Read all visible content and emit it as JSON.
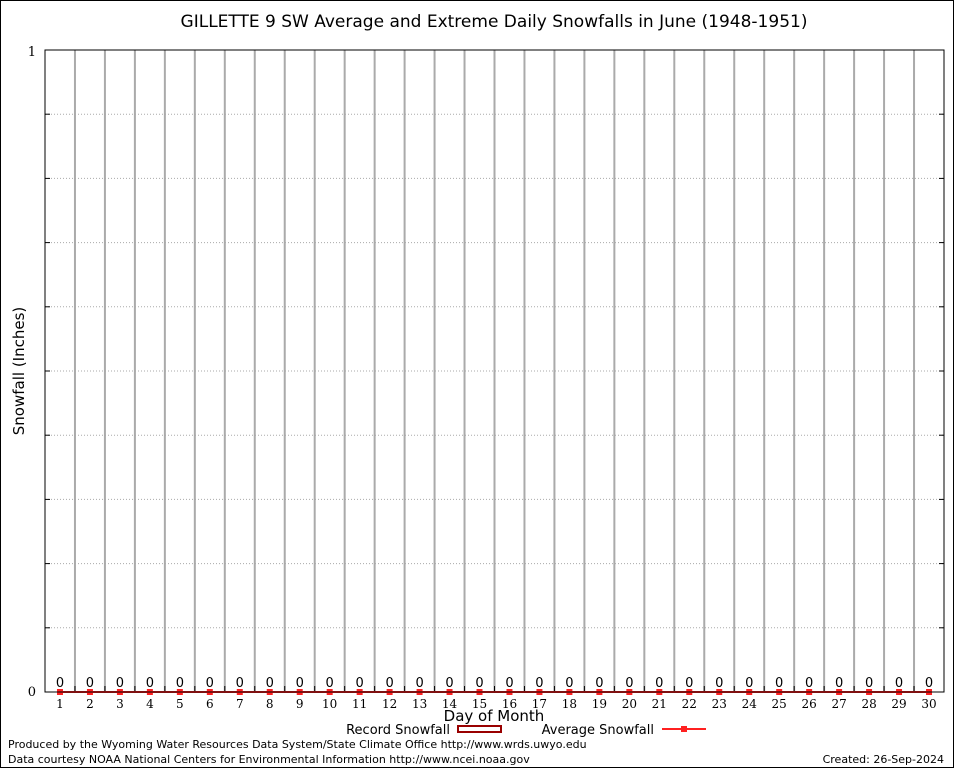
{
  "chart_data": {
    "type": "bar",
    "title": "GILLETTE 9 SW Average and Extreme Daily Snowfalls in June (1948-1951)",
    "xlabel": "Day of Month",
    "ylabel": "Snowfall (Inches)",
    "ylim": [
      0,
      1
    ],
    "yticks": [
      "0",
      "1"
    ],
    "grid": true,
    "categories": [
      "1",
      "2",
      "3",
      "4",
      "5",
      "6",
      "7",
      "8",
      "9",
      "10",
      "11",
      "12",
      "13",
      "14",
      "15",
      "16",
      "17",
      "18",
      "19",
      "20",
      "21",
      "22",
      "23",
      "24",
      "25",
      "26",
      "27",
      "28",
      "29",
      "30"
    ],
    "series": [
      {
        "name": "Record Snowfall",
        "type": "bar",
        "color": "#990000",
        "values": [
          0,
          0,
          0,
          0,
          0,
          0,
          0,
          0,
          0,
          0,
          0,
          0,
          0,
          0,
          0,
          0,
          0,
          0,
          0,
          0,
          0,
          0,
          0,
          0,
          0,
          0,
          0,
          0,
          0,
          0
        ]
      },
      {
        "name": "Average Snowfall",
        "type": "line",
        "color": "#ff2020",
        "values": [
          0,
          0,
          0,
          0,
          0,
          0,
          0,
          0,
          0,
          0,
          0,
          0,
          0,
          0,
          0,
          0,
          0,
          0,
          0,
          0,
          0,
          0,
          0,
          0,
          0,
          0,
          0,
          0,
          0,
          0
        ]
      }
    ],
    "data_labels": [
      "0",
      "0",
      "0",
      "0",
      "0",
      "0",
      "0",
      "0",
      "0",
      "0",
      "0",
      "0",
      "0",
      "0",
      "0",
      "0",
      "0",
      "0",
      "0",
      "0",
      "0",
      "0",
      "0",
      "0",
      "0",
      "0",
      "0",
      "0",
      "0",
      "0"
    ],
    "legend": "bottom"
  },
  "footer": {
    "produced_by": "Produced by the Wyoming Water Resources Data System/State Climate Office http://www.wrds.uwyo.edu",
    "data_courtesy": "Data courtesy NOAA National Centers for Environmental Information http://www.ncei.noaa.gov",
    "created": "Created: 26-Sep-2024"
  }
}
